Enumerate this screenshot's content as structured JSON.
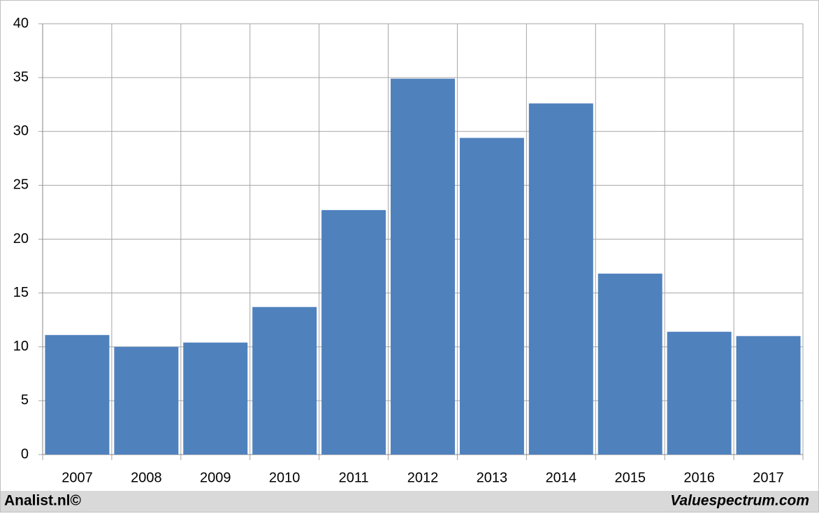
{
  "chart_data": {
    "type": "bar",
    "categories": [
      "2007",
      "2008",
      "2009",
      "2010",
      "2011",
      "2012",
      "2013",
      "2014",
      "2015",
      "2016",
      "2017"
    ],
    "values": [
      11.1,
      10.0,
      10.4,
      13.7,
      22.7,
      34.9,
      29.4,
      32.6,
      16.8,
      11.4,
      11.0
    ],
    "color": "#4f81bd",
    "ylim": [
      0,
      40
    ],
    "yticks": [
      0,
      5,
      10,
      15,
      20,
      25,
      30,
      35,
      40
    ],
    "grid": true
  },
  "footer": {
    "left": "Analist.nl©",
    "right": "Valuespectrum.com"
  }
}
